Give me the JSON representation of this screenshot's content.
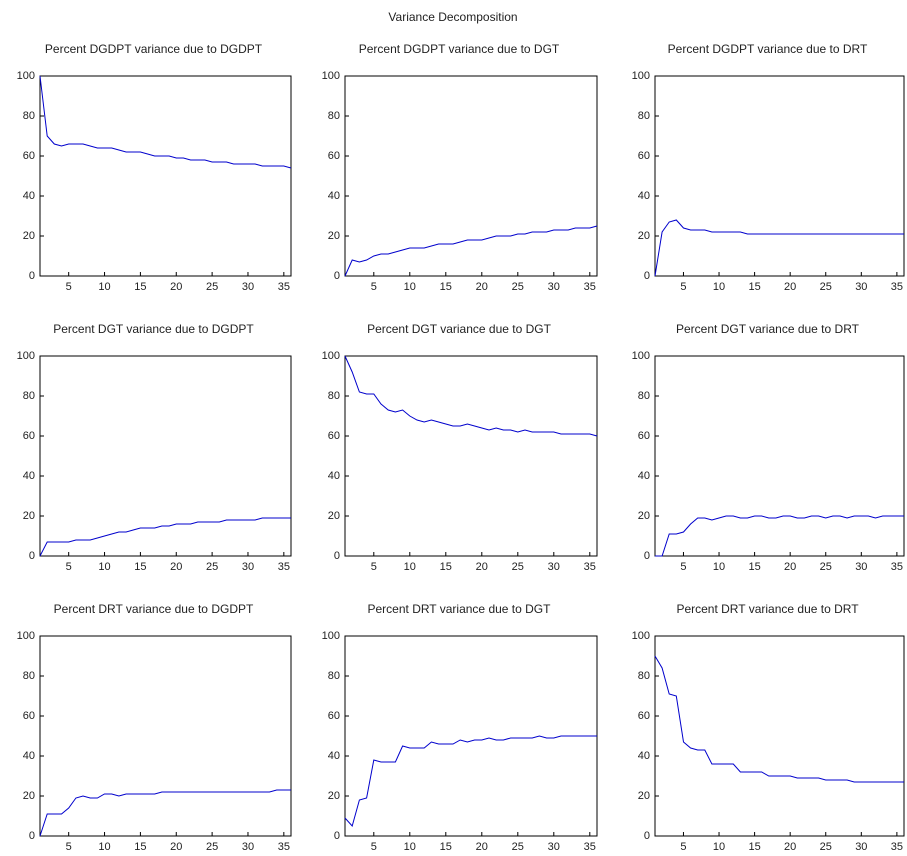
{
  "title": "Variance Decomposition",
  "chart_data": [
    {
      "type": "line",
      "title": "Percent DGDPT variance due to DGDPT",
      "color": "#0000cc",
      "xlim": [
        1,
        36
      ],
      "ylim": [
        0,
        100
      ],
      "xticks": [
        5,
        10,
        15,
        20,
        25,
        30,
        35
      ],
      "yticks": [
        0,
        20,
        40,
        60,
        80,
        100
      ],
      "x": [
        1,
        2,
        3,
        4,
        5,
        6,
        7,
        8,
        9,
        10,
        11,
        12,
        13,
        14,
        15,
        16,
        17,
        18,
        19,
        20,
        21,
        22,
        23,
        24,
        25,
        26,
        27,
        28,
        29,
        30,
        31,
        32,
        33,
        34,
        35,
        36
      ],
      "values": [
        100,
        70,
        66,
        65,
        66,
        66,
        66,
        65,
        64,
        64,
        64,
        63,
        62,
        62,
        62,
        61,
        60,
        60,
        60,
        59,
        59,
        58,
        58,
        58,
        57,
        57,
        57,
        56,
        56,
        56,
        56,
        55,
        55,
        55,
        55,
        54
      ]
    },
    {
      "type": "line",
      "title": "Percent DGDPT variance due to DGT",
      "color": "#0000cc",
      "xlim": [
        1,
        36
      ],
      "ylim": [
        0,
        100
      ],
      "xticks": [
        5,
        10,
        15,
        20,
        25,
        30,
        35
      ],
      "yticks": [
        0,
        20,
        40,
        60,
        80,
        100
      ],
      "x": [
        1,
        2,
        3,
        4,
        5,
        6,
        7,
        8,
        9,
        10,
        11,
        12,
        13,
        14,
        15,
        16,
        17,
        18,
        19,
        20,
        21,
        22,
        23,
        24,
        25,
        26,
        27,
        28,
        29,
        30,
        31,
        32,
        33,
        34,
        35,
        36
      ],
      "values": [
        0,
        8,
        7,
        8,
        10,
        11,
        11,
        12,
        13,
        14,
        14,
        14,
        15,
        16,
        16,
        16,
        17,
        18,
        18,
        18,
        19,
        20,
        20,
        20,
        21,
        21,
        22,
        22,
        22,
        23,
        23,
        23,
        24,
        24,
        24,
        25
      ]
    },
    {
      "type": "line",
      "title": "Percent DGDPT variance due to DRT",
      "color": "#0000cc",
      "xlim": [
        1,
        36
      ],
      "ylim": [
        0,
        100
      ],
      "xticks": [
        5,
        10,
        15,
        20,
        25,
        30,
        35
      ],
      "yticks": [
        0,
        20,
        40,
        60,
        80,
        100
      ],
      "x": [
        1,
        2,
        3,
        4,
        5,
        6,
        7,
        8,
        9,
        10,
        11,
        12,
        13,
        14,
        15,
        16,
        17,
        18,
        19,
        20,
        21,
        22,
        23,
        24,
        25,
        26,
        27,
        28,
        29,
        30,
        31,
        32,
        33,
        34,
        35,
        36
      ],
      "values": [
        0,
        22,
        27,
        28,
        24,
        23,
        23,
        23,
        22,
        22,
        22,
        22,
        22,
        21,
        21,
        21,
        21,
        21,
        21,
        21,
        21,
        21,
        21,
        21,
        21,
        21,
        21,
        21,
        21,
        21,
        21,
        21,
        21,
        21,
        21,
        21
      ]
    },
    {
      "type": "line",
      "title": "Percent DGT variance due to DGDPT",
      "color": "#0000cc",
      "xlim": [
        1,
        36
      ],
      "ylim": [
        0,
        100
      ],
      "xticks": [
        5,
        10,
        15,
        20,
        25,
        30,
        35
      ],
      "yticks": [
        0,
        20,
        40,
        60,
        80,
        100
      ],
      "x": [
        1,
        2,
        3,
        4,
        5,
        6,
        7,
        8,
        9,
        10,
        11,
        12,
        13,
        14,
        15,
        16,
        17,
        18,
        19,
        20,
        21,
        22,
        23,
        24,
        25,
        26,
        27,
        28,
        29,
        30,
        31,
        32,
        33,
        34,
        35,
        36
      ],
      "values": [
        0,
        7,
        7,
        7,
        7,
        8,
        8,
        8,
        9,
        10,
        11,
        12,
        12,
        13,
        14,
        14,
        14,
        15,
        15,
        16,
        16,
        16,
        17,
        17,
        17,
        17,
        18,
        18,
        18,
        18,
        18,
        19,
        19,
        19,
        19,
        19
      ]
    },
    {
      "type": "line",
      "title": "Percent DGT variance due to DGT",
      "color": "#0000cc",
      "xlim": [
        1,
        36
      ],
      "ylim": [
        0,
        100
      ],
      "xticks": [
        5,
        10,
        15,
        20,
        25,
        30,
        35
      ],
      "yticks": [
        0,
        20,
        40,
        60,
        80,
        100
      ],
      "x": [
        1,
        2,
        3,
        4,
        5,
        6,
        7,
        8,
        9,
        10,
        11,
        12,
        13,
        14,
        15,
        16,
        17,
        18,
        19,
        20,
        21,
        22,
        23,
        24,
        25,
        26,
        27,
        28,
        29,
        30,
        31,
        32,
        33,
        34,
        35,
        36
      ],
      "values": [
        100,
        92,
        82,
        81,
        81,
        76,
        73,
        72,
        73,
        70,
        68,
        67,
        68,
        67,
        66,
        65,
        65,
        66,
        65,
        64,
        63,
        64,
        63,
        63,
        62,
        63,
        62,
        62,
        62,
        62,
        61,
        61,
        61,
        61,
        61,
        60
      ]
    },
    {
      "type": "line",
      "title": "Percent DGT variance due to DRT",
      "color": "#0000cc",
      "xlim": [
        1,
        36
      ],
      "ylim": [
        0,
        100
      ],
      "xticks": [
        5,
        10,
        15,
        20,
        25,
        30,
        35
      ],
      "yticks": [
        0,
        20,
        40,
        60,
        80,
        100
      ],
      "x": [
        1,
        2,
        3,
        4,
        5,
        6,
        7,
        8,
        9,
        10,
        11,
        12,
        13,
        14,
        15,
        16,
        17,
        18,
        19,
        20,
        21,
        22,
        23,
        24,
        25,
        26,
        27,
        28,
        29,
        30,
        31,
        32,
        33,
        34,
        35,
        36
      ],
      "values": [
        0,
        0,
        11,
        11,
        12,
        16,
        19,
        19,
        18,
        19,
        20,
        20,
        19,
        19,
        20,
        20,
        19,
        19,
        20,
        20,
        19,
        19,
        20,
        20,
        19,
        20,
        20,
        19,
        20,
        20,
        20,
        19,
        20,
        20,
        20,
        20
      ]
    },
    {
      "type": "line",
      "title": "Percent DRT variance due to DGDPT",
      "color": "#0000cc",
      "xlim": [
        1,
        36
      ],
      "ylim": [
        0,
        100
      ],
      "xticks": [
        5,
        10,
        15,
        20,
        25,
        30,
        35
      ],
      "yticks": [
        0,
        20,
        40,
        60,
        80,
        100
      ],
      "x": [
        1,
        2,
        3,
        4,
        5,
        6,
        7,
        8,
        9,
        10,
        11,
        12,
        13,
        14,
        15,
        16,
        17,
        18,
        19,
        20,
        21,
        22,
        23,
        24,
        25,
        26,
        27,
        28,
        29,
        30,
        31,
        32,
        33,
        34,
        35,
        36
      ],
      "values": [
        0,
        11,
        11,
        11,
        14,
        19,
        20,
        19,
        19,
        21,
        21,
        20,
        21,
        21,
        21,
        21,
        21,
        22,
        22,
        22,
        22,
        22,
        22,
        22,
        22,
        22,
        22,
        22,
        22,
        22,
        22,
        22,
        22,
        23,
        23,
        23
      ]
    },
    {
      "type": "line",
      "title": "Percent DRT variance due to DGT",
      "color": "#0000cc",
      "xlim": [
        1,
        36
      ],
      "ylim": [
        0,
        100
      ],
      "xticks": [
        5,
        10,
        15,
        20,
        25,
        30,
        35
      ],
      "yticks": [
        0,
        20,
        40,
        60,
        80,
        100
      ],
      "x": [
        1,
        2,
        3,
        4,
        5,
        6,
        7,
        8,
        9,
        10,
        11,
        12,
        13,
        14,
        15,
        16,
        17,
        18,
        19,
        20,
        21,
        22,
        23,
        24,
        25,
        26,
        27,
        28,
        29,
        30,
        31,
        32,
        33,
        34,
        35,
        36
      ],
      "values": [
        9,
        5,
        18,
        19,
        38,
        37,
        37,
        37,
        45,
        44,
        44,
        44,
        47,
        46,
        46,
        46,
        48,
        47,
        48,
        48,
        49,
        48,
        48,
        49,
        49,
        49,
        49,
        50,
        49,
        49,
        50,
        50,
        50,
        50,
        50,
        50
      ]
    },
    {
      "type": "line",
      "title": "Percent DRT variance due to DRT",
      "color": "#0000cc",
      "xlim": [
        1,
        36
      ],
      "ylim": [
        0,
        100
      ],
      "xticks": [
        5,
        10,
        15,
        20,
        25,
        30,
        35
      ],
      "yticks": [
        0,
        20,
        40,
        60,
        80,
        100
      ],
      "x": [
        1,
        2,
        3,
        4,
        5,
        6,
        7,
        8,
        9,
        10,
        11,
        12,
        13,
        14,
        15,
        16,
        17,
        18,
        19,
        20,
        21,
        22,
        23,
        24,
        25,
        26,
        27,
        28,
        29,
        30,
        31,
        32,
        33,
        34,
        35,
        36
      ],
      "values": [
        90,
        84,
        71,
        70,
        47,
        44,
        43,
        43,
        36,
        36,
        36,
        36,
        32,
        32,
        32,
        32,
        30,
        30,
        30,
        30,
        29,
        29,
        29,
        29,
        28,
        28,
        28,
        28,
        27,
        27,
        27,
        27,
        27,
        27,
        27,
        27
      ]
    }
  ]
}
